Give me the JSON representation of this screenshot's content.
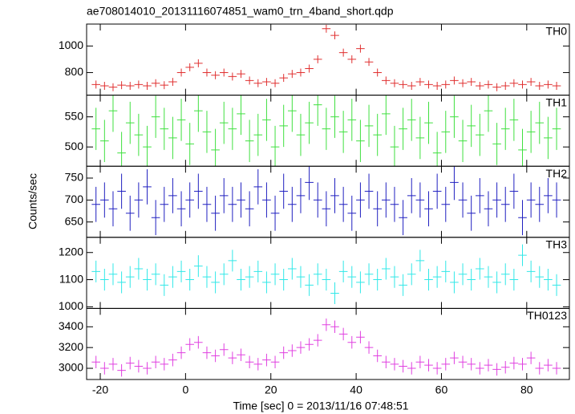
{
  "chart_data": {
    "type": "line",
    "title": "ae708014010_20131116074851_wam0_trn_4band_short.qdp",
    "xlabel": "Time [sec] 0 = 2013/11/16 07:48:51",
    "ylabel": "Counts/sec",
    "xlim": [
      -23.2,
      90
    ],
    "xticks": [
      -20,
      0,
      20,
      40,
      60,
      80
    ],
    "x": [
      -21,
      -19,
      -17,
      -15,
      -13,
      -11,
      -9,
      -7,
      -5,
      -3,
      -1,
      1,
      3,
      5,
      7,
      9,
      11,
      13,
      15,
      17,
      19,
      21,
      23,
      25,
      27,
      29,
      31,
      33,
      35,
      37,
      39,
      41,
      43,
      45,
      47,
      49,
      51,
      53,
      55,
      57,
      59,
      61,
      63,
      65,
      67,
      69,
      71,
      73,
      75,
      77,
      79,
      81,
      83,
      85,
      87
    ],
    "series": [
      {
        "name": "TH0",
        "color": "#e03030",
        "ylim": [
          630,
          1165
        ],
        "yticks": [
          800,
          1000
        ],
        "error": 30,
        "values": [
          710,
          700,
          690,
          705,
          700,
          710,
          700,
          720,
          705,
          730,
          800,
          840,
          870,
          800,
          780,
          800,
          770,
          790,
          740,
          720,
          730,
          720,
          760,
          790,
          800,
          830,
          900,
          1130,
          1080,
          950,
          900,
          980,
          880,
          800,
          740,
          720,
          710,
          700,
          730,
          710,
          700,
          710,
          740,
          720,
          730,
          700,
          710,
          690,
          700,
          720,
          710,
          730,
          700,
          710,
          700
        ]
      },
      {
        "name": "TH1",
        "color": "#40e040",
        "ylim": [
          468,
          586
        ],
        "yticks": [
          500,
          550
        ],
        "error": 35,
        "values": [
          530,
          510,
          560,
          490,
          540,
          520,
          500,
          550,
          530,
          515,
          545,
          505,
          560,
          525,
          495,
          540,
          530,
          555,
          510,
          520,
          545,
          500,
          535,
          560,
          520,
          540,
          570,
          530,
          550,
          525,
          545,
          510,
          535,
          520,
          555,
          500,
          530,
          545,
          515,
          540,
          490,
          525,
          550,
          510,
          535,
          520,
          560,
          505,
          530,
          545,
          495,
          525,
          540,
          515,
          530
        ]
      },
      {
        "name": "TH2",
        "color": "#2020c0",
        "ylim": [
          615,
          777
        ],
        "yticks": [
          650,
          700,
          750
        ],
        "error": 40,
        "values": [
          690,
          700,
          680,
          720,
          670,
          700,
          730,
          660,
          690,
          710,
          680,
          700,
          720,
          690,
          670,
          710,
          690,
          700,
          680,
          730,
          700,
          670,
          720,
          690,
          710,
          740,
          700,
          680,
          710,
          690,
          670,
          700,
          720,
          680,
          700,
          690,
          660,
          710,
          700,
          680,
          720,
          690,
          740,
          700,
          670,
          710,
          680,
          700,
          690,
          720,
          660,
          700,
          690,
          710,
          700
        ]
      },
      {
        "name": "TH3",
        "color": "#30e8e8",
        "ylim": [
          994,
          1256
        ],
        "yticks": [
          1000,
          1100,
          1200
        ],
        "error": 40,
        "values": [
          1130,
          1100,
          1120,
          1090,
          1110,
          1140,
          1100,
          1120,
          1080,
          1110,
          1130,
          1100,
          1150,
          1110,
          1090,
          1120,
          1170,
          1100,
          1110,
          1130,
          1090,
          1120,
          1100,
          1140,
          1110,
          1080,
          1120,
          1100,
          1050,
          1130,
          1110,
          1090,
          1120,
          1100,
          1140,
          1110,
          1080,
          1120,
          1170,
          1100,
          1110,
          1130,
          1090,
          1120,
          1100,
          1140,
          1110,
          1090,
          1120,
          1100,
          1190,
          1130,
          1110,
          1100,
          1080
        ]
      },
      {
        "name": "TH0123",
        "color": "#e040e0",
        "ylim": [
          2892,
          3577
        ],
        "yticks": [
          3000,
          3200,
          3400
        ],
        "error": 60,
        "values": [
          3060,
          3000,
          3040,
          2980,
          3050,
          3020,
          3000,
          3060,
          3040,
          3080,
          3150,
          3230,
          3250,
          3150,
          3120,
          3180,
          3100,
          3130,
          3060,
          3040,
          3080,
          3060,
          3150,
          3170,
          3200,
          3230,
          3270,
          3420,
          3400,
          3330,
          3250,
          3300,
          3200,
          3120,
          3060,
          3040,
          3020,
          3000,
          3060,
          3030,
          3000,
          3040,
          3100,
          3060,
          3040,
          3000,
          3030,
          2990,
          3010,
          3050,
          3040,
          3100,
          3000,
          3030,
          3000
        ]
      }
    ]
  }
}
